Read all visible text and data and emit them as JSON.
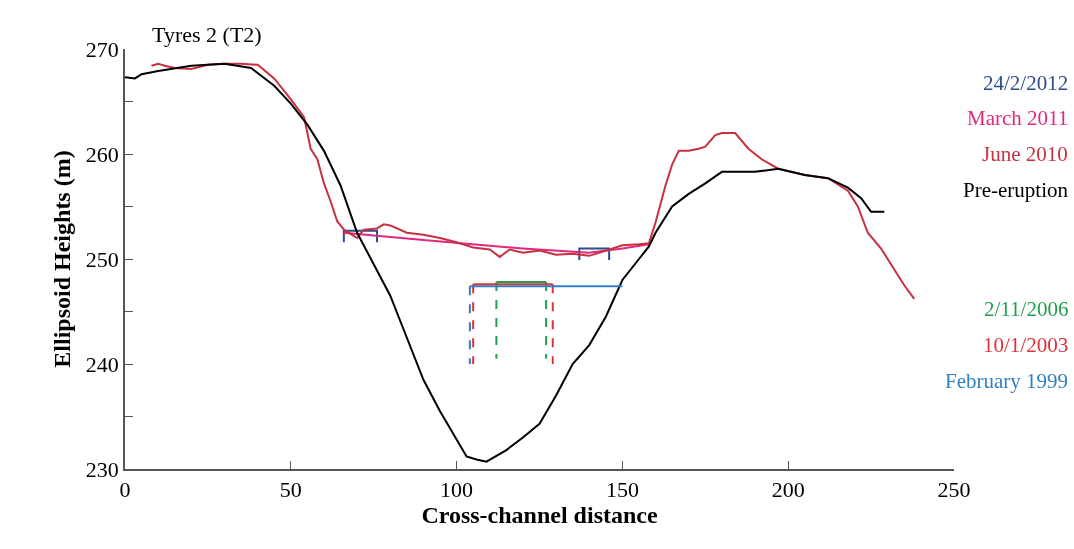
{
  "chart_data": {
    "type": "line",
    "title": "Tyres 2 (T2)",
    "xlabel": "Cross-channel distance",
    "ylabel": "Ellipsoid Heights (m)",
    "xlim": [
      0,
      250
    ],
    "xticks": [
      0,
      50,
      100,
      150,
      200,
      250
    ],
    "ylim": [
      230,
      270
    ],
    "yticks": [
      230,
      {
        "value": 235,
        "label": null
      },
      240,
      {
        "value": 245,
        "label": null
      },
      250,
      {
        "value": 255,
        "label": null
      },
      260,
      {
        "value": 265,
        "label": null
      },
      270
    ],
    "marker": "none",
    "series": [
      {
        "name": "24/2/2012",
        "color": "#2e4b8c",
        "line_style": "solid",
        "x": [
          66,
          66,
          76,
          76,
          null,
          137,
          137,
          146,
          146
        ],
        "values": [
          251.6,
          252.7,
          252.7,
          251.6,
          null,
          249.9,
          251.0,
          251.0,
          249.9
        ]
      },
      {
        "name": "March 2011",
        "color": "#e0287f",
        "line_style": "solid",
        "x": [
          66,
          90,
          120,
          140,
          150,
          158
        ],
        "values": [
          252.5,
          251.8,
          251.0,
          250.6,
          251.0,
          251.4
        ]
      },
      {
        "name": "June 2010",
        "color": "#c8303f",
        "line_style": "solid",
        "x": [
          8,
          10,
          12,
          15,
          20,
          25,
          30,
          35,
          40,
          45,
          50,
          54,
          56,
          58,
          60,
          62,
          64,
          66,
          68,
          70,
          72,
          76,
          78,
          80,
          85,
          90,
          95,
          100,
          105,
          110,
          113,
          116,
          120,
          125,
          130,
          135,
          140,
          145,
          150,
          155,
          158,
          160,
          163,
          165,
          167,
          170,
          173,
          175,
          178,
          180,
          184,
          188,
          192,
          197,
          205,
          212,
          218,
          221,
          224,
          228,
          232,
          235,
          238
        ],
        "values": [
          268.4,
          268.6,
          268.4,
          268.2,
          268.1,
          268.5,
          268.6,
          268.6,
          268.5,
          267.2,
          265.2,
          263.5,
          260.5,
          259.5,
          257.2,
          255.5,
          253.6,
          252.8,
          252.4,
          252.0,
          252.8,
          252.9,
          253.3,
          253.2,
          252.5,
          252.3,
          252.0,
          251.6,
          251.1,
          250.9,
          250.2,
          250.9,
          250.6,
          250.8,
          250.4,
          250.5,
          250.3,
          250.8,
          251.3,
          251.4,
          251.5,
          253.5,
          257.0,
          259.0,
          260.3,
          260.3,
          260.5,
          260.7,
          261.8,
          262.0,
          262.0,
          260.5,
          259.5,
          258.6,
          258.0,
          257.7,
          256.5,
          255.0,
          252.5,
          251.0,
          249.0,
          247.5,
          246.2
        ]
      },
      {
        "name": "Pre-eruption",
        "color": "#000000",
        "line_style": "solid",
        "x": [
          0,
          3,
          5,
          10,
          20,
          30,
          38,
          45,
          50,
          55,
          60,
          65,
          70,
          75,
          80,
          85,
          90,
          95,
          100,
          103,
          106,
          109,
          115,
          120,
          125,
          130,
          135,
          140,
          145,
          150,
          155,
          158,
          160,
          165,
          170,
          175,
          180,
          185,
          190,
          197,
          205,
          212,
          218,
          222,
          225,
          229
        ],
        "values": [
          267.3,
          267.2,
          267.6,
          267.9,
          268.4,
          268.6,
          268.2,
          266.5,
          264.8,
          262.8,
          260.3,
          257.0,
          252.5,
          249.5,
          246.5,
          242.5,
          238.5,
          235.5,
          232.8,
          231.2,
          230.9,
          230.7,
          231.8,
          233.0,
          234.3,
          237.0,
          240.0,
          241.8,
          244.5,
          248.0,
          250.0,
          251.2,
          252.5,
          255.0,
          256.2,
          257.2,
          258.3,
          258.3,
          258.3,
          258.6,
          258.0,
          257.7,
          256.8,
          255.8,
          254.5,
          254.5
        ]
      },
      {
        "name": "2/11/2006",
        "color": "#1e9e4f",
        "line_style": "solid",
        "x": [
          112,
          127
        ],
        "values": [
          247.8,
          247.8
        ]
      },
      {
        "color": "#1e9e4f",
        "line_style": "dashed",
        "x": [
          112,
          112,
          null,
          127,
          127
        ],
        "values": [
          247.8,
          240.5,
          null,
          247.8,
          240.5
        ]
      },
      {
        "name": "10/1/2003",
        "color": "#e0303a",
        "line_style": "solid",
        "x": [
          105,
          129
        ],
        "values": [
          247.6,
          247.6
        ]
      },
      {
        "color": "#e0303a",
        "line_style": "dashed",
        "x": [
          105,
          105,
          null,
          129,
          129
        ],
        "values": [
          247.6,
          240.0,
          null,
          247.6,
          240.0
        ]
      },
      {
        "name": "February 1999",
        "color": "#2f7fc1",
        "line_style": "solid",
        "x": [
          104,
          150
        ],
        "values": [
          247.4,
          247.4
        ]
      },
      {
        "color": "#2f7fc1",
        "line_style": "dashed",
        "x": [
          104,
          104
        ],
        "values": [
          247.4,
          240.0
        ]
      }
    ]
  }
}
